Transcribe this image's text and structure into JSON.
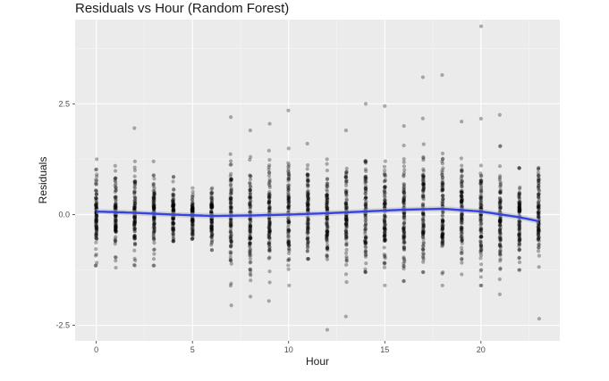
{
  "chart_data": {
    "type": "scatter",
    "title": "Residuals vs Hour (Random Forest)",
    "xlabel": "Hour",
    "ylabel": "Residuals",
    "xlim": [
      -1.1,
      24.1
    ],
    "ylim": [
      -2.85,
      4.4
    ],
    "x_ticks": [
      0,
      5,
      10,
      15,
      20
    ],
    "x_tick_labels": [
      "0",
      "5",
      "10",
      "15",
      "20"
    ],
    "y_ticks": [
      -2.5,
      0,
      2.5
    ],
    "y_tick_labels": [
      "-2.5",
      "0.0",
      "2.5"
    ],
    "grid": true,
    "legend": "none",
    "colors": {
      "panel": "#ebebeb",
      "grid_major": "#ffffff",
      "points": "#000000",
      "smooth_line": "#3344e0",
      "ribbon": "#b8b8c4"
    },
    "point_summary_by_hour": [
      {
        "x": 0,
        "min": -1.15,
        "max": 1.25,
        "sd": 0.45
      },
      {
        "x": 1,
        "min": -1.2,
        "max": 1.1,
        "sd": 0.4
      },
      {
        "x": 2,
        "min": -1.15,
        "max": 1.95,
        "sd": 0.42
      },
      {
        "x": 3,
        "min": -1.15,
        "max": 1.2,
        "sd": 0.38
      },
      {
        "x": 4,
        "min": -0.6,
        "max": 0.85,
        "sd": 0.28
      },
      {
        "x": 5,
        "min": -0.55,
        "max": 0.6,
        "sd": 0.25
      },
      {
        "x": 6,
        "min": -0.8,
        "max": 0.6,
        "sd": 0.3
      },
      {
        "x": 7,
        "min": -2.05,
        "max": 2.2,
        "sd": 0.65
      },
      {
        "x": 8,
        "min": -1.85,
        "max": 1.9,
        "sd": 0.6
      },
      {
        "x": 9,
        "min": -1.95,
        "max": 2.05,
        "sd": 0.6
      },
      {
        "x": 10,
        "min": -1.6,
        "max": 2.35,
        "sd": 0.55
      },
      {
        "x": 11,
        "min": -1.0,
        "max": 1.6,
        "sd": 0.5
      },
      {
        "x": 12,
        "min": -2.6,
        "max": 1.25,
        "sd": 0.55
      },
      {
        "x": 13,
        "min": -2.3,
        "max": 1.9,
        "sd": 0.55
      },
      {
        "x": 14,
        "min": -1.3,
        "max": 2.5,
        "sd": 0.55
      },
      {
        "x": 15,
        "min": -1.6,
        "max": 2.45,
        "sd": 0.55
      },
      {
        "x": 16,
        "min": -1.5,
        "max": 2.0,
        "sd": 0.55
      },
      {
        "x": 17,
        "min": -1.3,
        "max": 3.1,
        "sd": 0.6
      },
      {
        "x": 18,
        "min": -1.6,
        "max": 3.15,
        "sd": 0.65
      },
      {
        "x": 19,
        "min": -1.35,
        "max": 2.1,
        "sd": 0.55
      },
      {
        "x": 20,
        "min": -1.6,
        "max": 4.25,
        "sd": 0.6
      },
      {
        "x": 21,
        "min": -1.8,
        "max": 2.25,
        "sd": 0.55
      },
      {
        "x": 22,
        "min": -1.25,
        "max": 1.05,
        "sd": 0.45
      },
      {
        "x": 23,
        "min": -2.35,
        "max": 1.05,
        "sd": 0.45
      }
    ],
    "smooth_series": {
      "x": [
        0,
        2,
        4,
        6,
        8,
        10,
        12,
        14,
        16,
        18,
        20,
        22,
        23
      ],
      "y": [
        0.07,
        0.04,
        0.0,
        -0.03,
        -0.02,
        0.0,
        0.03,
        0.07,
        0.11,
        0.13,
        0.07,
        -0.06,
        -0.15
      ]
    }
  }
}
